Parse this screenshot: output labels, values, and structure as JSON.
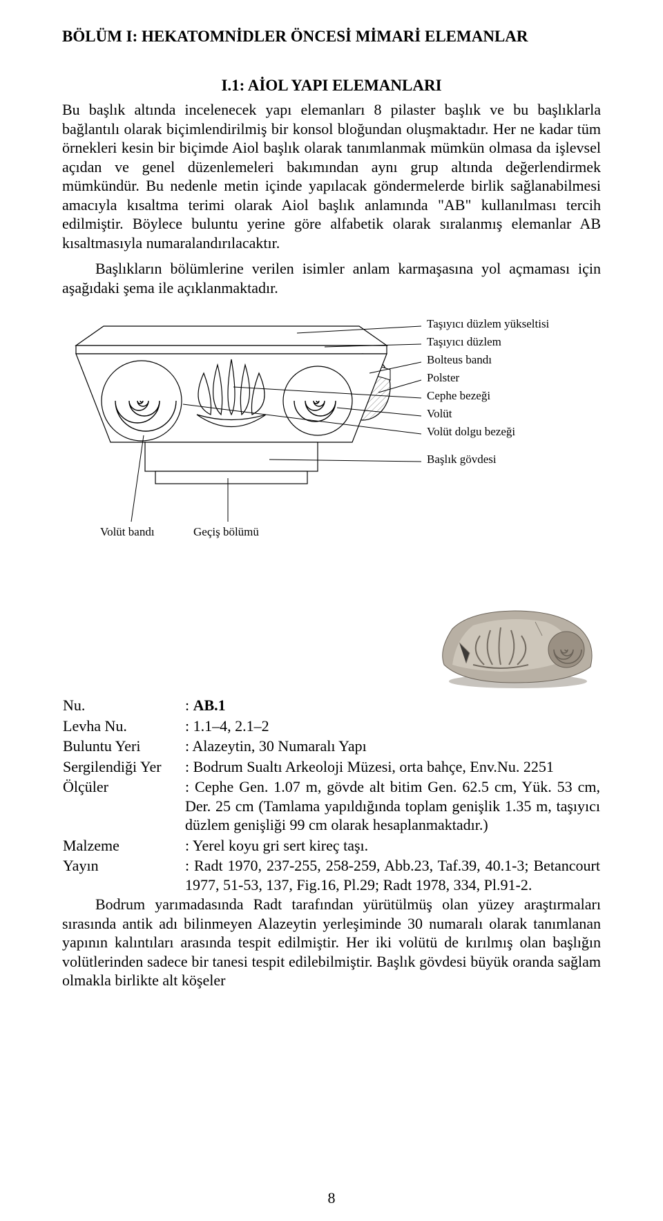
{
  "section_title": "BÖLÜM I: HEKATOMNİDLER ÖNCESİ MİMARİ ELEMANLAR",
  "subsection_title": "I.1: AİOL YAPI ELEMANLARI",
  "para1": "Bu başlık altında incelenecek yapı elemanları 8 pilaster başlık ve bu başlıklarla bağlantılı olarak biçimlendirilmiş bir konsol bloğundan oluşmaktadır. Her ne kadar tüm örnekleri kesin bir biçimde Aiol başlık olarak tanımlanmak mümkün olmasa da işlevsel açıdan ve genel düzenlemeleri bakımından aynı grup altında değerlendirmek mümkündür. Bu nedenle metin içinde yapılacak göndermelerde birlik sağlanabilmesi amacıyla kısaltma terimi olarak Aiol başlık anlamında \"AB\" kullanılması tercih edilmiştir. Böylece buluntu yerine göre alfabetik olarak sıralanmış elemanlar AB kısaltmasıyla numaralandırılacaktır.",
  "para2": "Başlıkların bölümlerine verilen isimler anlam karmaşasına yol açmaması için aşağıdaki şema ile açıklanmaktadır.",
  "diagram": {
    "labels_right": [
      "Taşıyıcı düzlem yükseltisi",
      "Taşıyıcı düzlem",
      "Bolteus bandı",
      "Polster",
      "Cephe bezeği",
      "Volüt",
      "Volüt dolgu bezeği",
      "Başlık gövdesi"
    ],
    "labels_bottom": [
      "Volüt bandı",
      "Geçiş bölümü"
    ],
    "stroke": "#000000",
    "fill": "#ffffff",
    "hatch": "#808080",
    "label_font_size": 17
  },
  "photo": {
    "bg": "#b8b0a4",
    "stone_light": "#cdc6ba",
    "stone_mid": "#9a9083",
    "stone_dark": "#6a6258"
  },
  "entry": {
    "rows": [
      {
        "label": "Nu.",
        "value": ": AB.1",
        "bold_value": true
      },
      {
        "label": "Levha Nu.",
        "value": ": 1.1–4, 2.1–2"
      },
      {
        "label": "Buluntu Yeri",
        "value": ": Alazeytin, 30 Numaralı Yapı"
      },
      {
        "label": "Sergilendiği Yer",
        "value": ": Bodrum Sualtı Arkeoloji Müzesi, orta bahçe, Env.Nu. 2251"
      },
      {
        "label": "Ölçüler",
        "value": ": Cephe Gen. 1.07 m, gövde alt bitim Gen. 62.5 cm, Yük. 53 cm, Der. 25 cm (Tamlama yapıldığında toplam genişlik 1.35 m, taşıyıcı düzlem genişliği 99 cm olarak hesaplanmaktadır.)"
      },
      {
        "label": "Malzeme",
        "value": ": Yerel koyu gri sert kireç taşı."
      },
      {
        "label": "Yayın",
        "value": ": Radt 1970, 237-255, 258-259, Abb.23, Taf.39, 40.1-3; Betancourt 1977, 51-53, 137, Fig.16, Pl.29; Radt 1978, 334, Pl.91-2."
      }
    ],
    "para": "Bodrum yarımadasında Radt tarafından yürütülmüş olan yüzey araştırmaları sırasında antik adı bilinmeyen Alazeytin yerleşiminde 30 numaralı olarak tanımlanan yapının kalıntıları arasında tespit edilmiştir. Her iki volütü de kırılmış olan başlığın volütlerinden sadece bir tanesi tespit edilebilmiştir. Başlık gövdesi büyük oranda sağlam olmakla birlikte alt köşeler"
  },
  "page_number": "8",
  "colors": {
    "text": "#000000",
    "background": "#ffffff"
  },
  "typography": {
    "body_font_size_pt": 12,
    "heading_font_size_pt": 12,
    "font_family": "Times New Roman"
  }
}
